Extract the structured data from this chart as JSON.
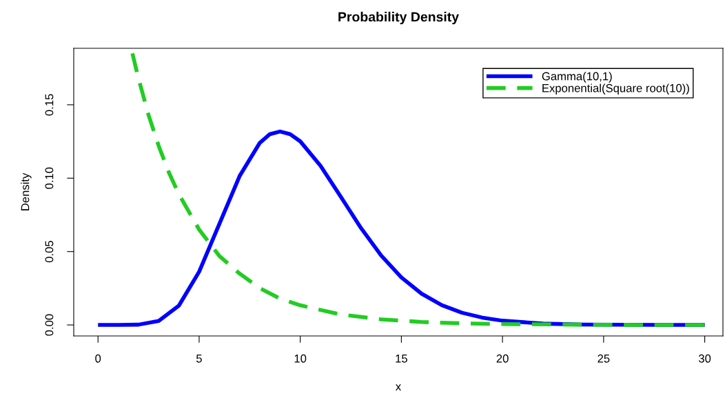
{
  "chart_data": {
    "type": "line",
    "title": "Probability Density",
    "xlabel": "x",
    "ylabel": "Density",
    "xlim": [
      -1.2,
      30.9
    ],
    "ylim": [
      -0.0075,
      0.1885
    ],
    "xticks": [
      0,
      5,
      10,
      15,
      20,
      25,
      30
    ],
    "yticks": [
      {
        "value": 0,
        "label": "0.00"
      },
      {
        "value": 0.05,
        "label": "0.05"
      },
      {
        "value": 0.1,
        "label": "0.10"
      },
      {
        "value": 0.15,
        "label": "0.15"
      }
    ],
    "grid": false,
    "legend": "top right",
    "series": [
      {
        "name": "Gamma(10,1)",
        "color": "#0000ff",
        "line_style": "solid",
        "x": [
          0,
          1,
          2,
          3,
          4,
          5,
          6,
          7,
          8,
          8.5,
          9,
          9.5,
          10,
          11,
          12,
          13,
          14,
          15,
          16,
          17,
          18,
          19,
          20,
          22,
          24,
          26,
          28,
          30
        ],
        "values": [
          0,
          0,
          0.0002,
          0.0027,
          0.0132,
          0.0363,
          0.0688,
          0.1014,
          0.1241,
          0.13,
          0.1318,
          0.13,
          0.1251,
          0.1085,
          0.0874,
          0.0661,
          0.0473,
          0.0324,
          0.0213,
          0.0135,
          0.0083,
          0.005,
          0.0029,
          0.0009,
          0.0003,
          0.0001,
          0,
          0
        ]
      },
      {
        "name": "Exponential(Square root(10))",
        "color": "#22cc22",
        "line_style": "dashed",
        "x": [
          1.7,
          2,
          2.5,
          3,
          3.5,
          4,
          5,
          6,
          7,
          8,
          9,
          10,
          12,
          14,
          16,
          18,
          20,
          25,
          30
        ],
        "values": [
          0.185,
          0.168,
          0.143,
          0.122,
          0.104,
          0.089,
          0.065,
          0.047,
          0.035,
          0.025,
          0.018,
          0.0134,
          0.0071,
          0.0038,
          0.002,
          0.0011,
          0.0006,
          0.0001,
          0
        ]
      }
    ]
  }
}
